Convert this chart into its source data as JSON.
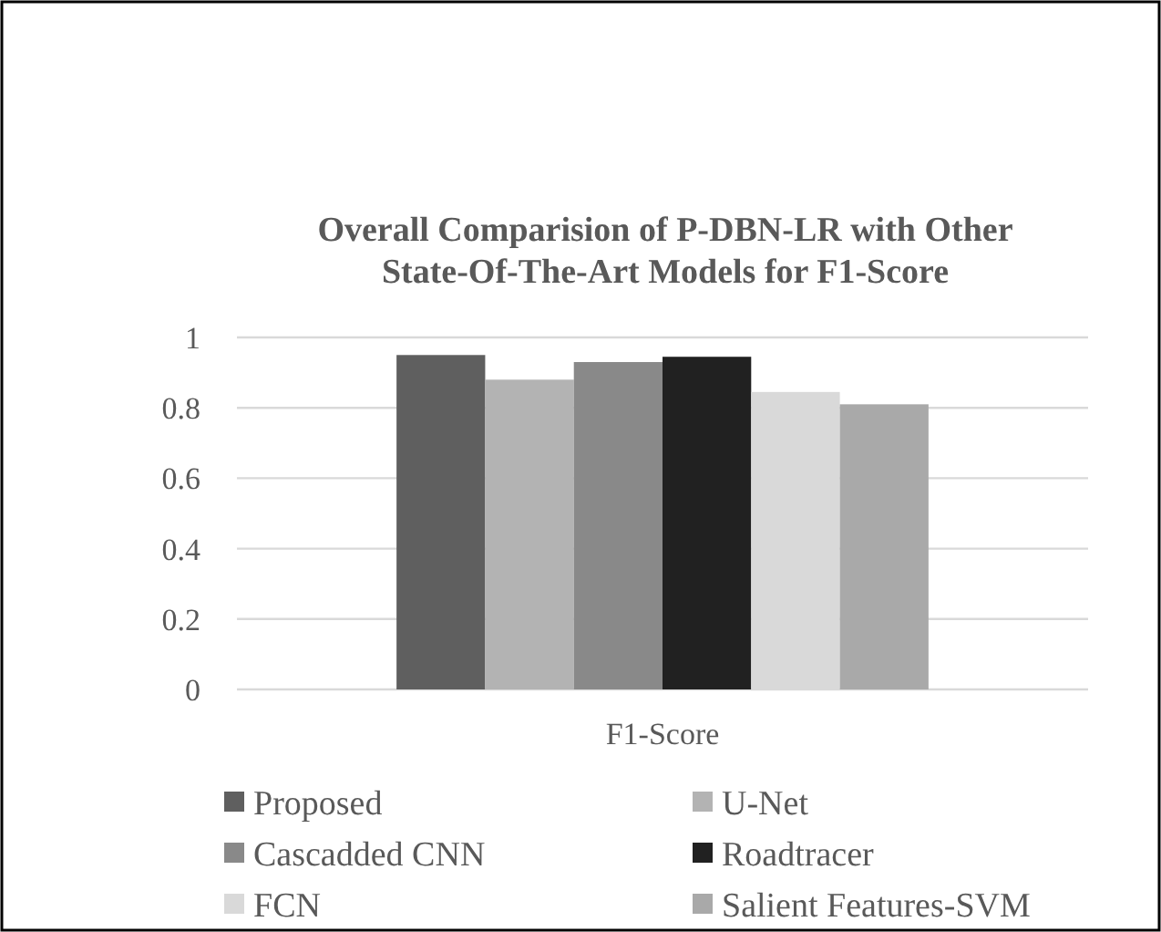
{
  "chart_data": {
    "type": "bar",
    "title": "Overall Comparision of P-DBN-LR with Other State-Of-The-Art Models for F1-Score",
    "categories": [
      "F1-Score"
    ],
    "series": [
      {
        "name": "Proposed",
        "color": "#5f5f5f",
        "values": [
          0.95
        ]
      },
      {
        "name": "U-Net",
        "color": "#b3b3b3",
        "values": [
          0.88
        ]
      },
      {
        "name": "Cascadded CNN",
        "color": "#898989",
        "values": [
          0.93
        ]
      },
      {
        "name": "Roadtracer",
        "color": "#212121",
        "values": [
          0.945
        ]
      },
      {
        "name": "FCN",
        "color": "#d9d9d9",
        "values": [
          0.845
        ]
      },
      {
        "name": "Salient Features-SVM",
        "color": "#a9a9a9",
        "values": [
          0.81
        ]
      }
    ],
    "ylim": [
      0,
      1
    ],
    "yticks": [
      0,
      0.2,
      0.4,
      0.6,
      0.8,
      1
    ],
    "grid": "y",
    "legend": "bottom"
  }
}
